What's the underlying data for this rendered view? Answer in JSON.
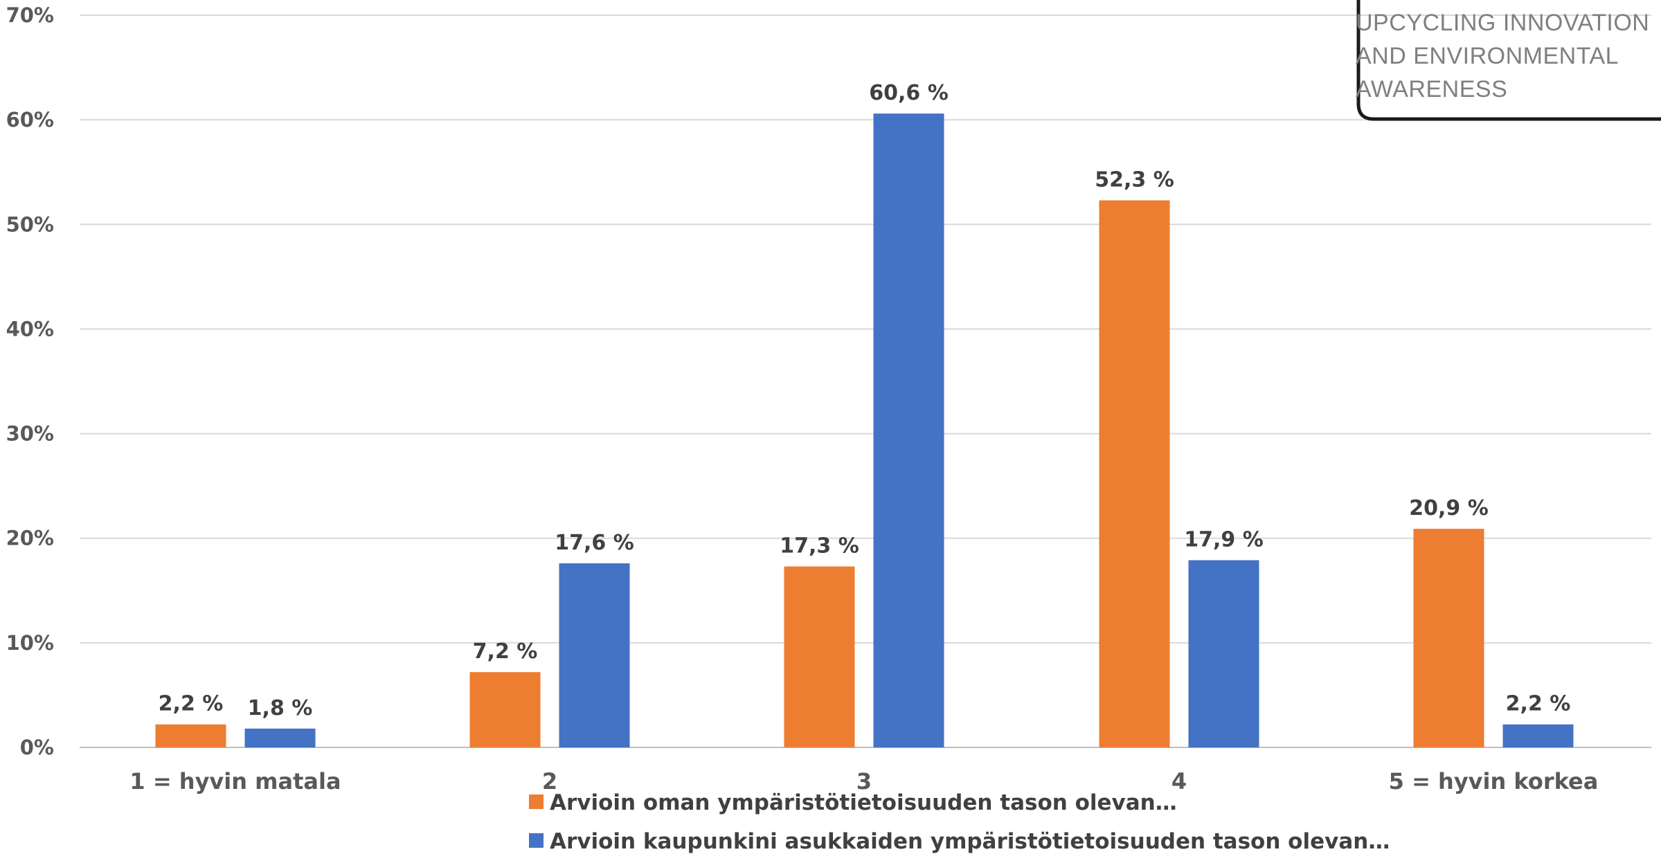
{
  "chart_data": {
    "type": "bar",
    "categories": [
      "1 = hyvin matala",
      "2",
      "3",
      "4",
      "5 = hyvin korkea"
    ],
    "series": [
      {
        "name": "Arvioin oman ympäristötietoisuuden tason olevan…",
        "values": [
          2.2,
          7.2,
          17.3,
          52.3,
          20.9
        ],
        "color": "#ED7D31"
      },
      {
        "name": "Arvioin kaupunkini asukkaiden ympäristötietoisuuden tason olevan…",
        "values": [
          1.8,
          17.6,
          60.6,
          17.9,
          2.2
        ],
        "color": "#4472C4"
      }
    ],
    "data_labels": [
      [
        "2,2 %",
        "7,2 %",
        "17,3 %",
        "52,3 %",
        "20,9 %"
      ],
      [
        "1,8 %",
        "17,6 %",
        "60,6 %",
        "17,9 %",
        "2,2 %"
      ]
    ],
    "yticks": [
      0,
      10,
      20,
      30,
      40,
      50,
      60,
      70
    ],
    "ytick_labels": [
      "0%",
      "10%",
      "20%",
      "30%",
      "40%",
      "50%",
      "60%",
      "70%"
    ],
    "ylim": [
      0,
      70
    ],
    "grid": true,
    "legend_position": "bottom",
    "title": "",
    "xlabel": "",
    "ylabel": ""
  },
  "logo": {
    "lines": [
      "UPCYCLING INNOVATION",
      "AND ENVIRONMENTAL",
      "AWARENESS"
    ]
  }
}
